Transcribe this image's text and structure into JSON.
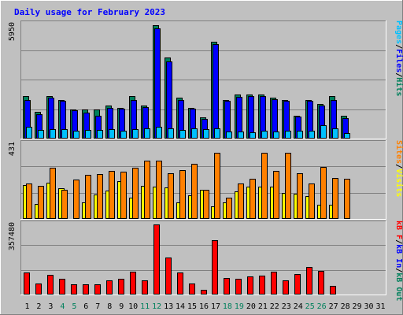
{
  "chart_data": {
    "type": "bar",
    "title": "Daily usage for February 2023",
    "categories": [
      "1",
      "2",
      "3",
      "4",
      "5",
      "6",
      "7",
      "8",
      "9",
      "10",
      "11",
      "12",
      "13",
      "14",
      "15",
      "16",
      "17",
      "18",
      "19",
      "20",
      "21",
      "22",
      "23",
      "24",
      "25",
      "26",
      "27",
      "28",
      "29",
      "30",
      "31"
    ],
    "weekend_days": [
      4,
      5,
      11,
      12,
      18,
      19,
      25,
      26
    ],
    "panels": [
      {
        "ymax": 5950,
        "ymax_label": "5950",
        "series": [
          {
            "name": "Hits",
            "color": "#00805c",
            "values": [
              2200,
              1400,
              2200,
              2000,
              1500,
              1500,
              1500,
              1700,
              1600,
              2200,
              1700,
              5850,
              4200,
              2100,
              1600,
              1100,
              5000,
              2000,
              2300,
              2300,
              2300,
              2100,
              2000,
              1200,
              2000,
              1800,
              2200,
              1200,
              0,
              0,
              0
            ]
          },
          {
            "name": "Files",
            "color": "#0000ff",
            "values": [
              2000,
              1250,
              2100,
              1950,
              1450,
              1350,
              1200,
              1600,
              1550,
              2000,
              1650,
              5700,
              4000,
              2000,
              1550,
              1000,
              4900,
              1950,
              2150,
              2200,
              2200,
              2050,
              1950,
              1150,
              1950,
              1700,
              2000,
              1050,
              0,
              0,
              0
            ]
          },
          {
            "name": "Pages",
            "color": "#00c0ff",
            "values": [
              600,
              450,
              500,
              500,
              400,
              450,
              450,
              480,
              420,
              480,
              550,
              620,
              550,
              450,
              550,
              500,
              550,
              380,
              380,
              320,
              420,
              380,
              400,
              420,
              400,
              700,
              550,
              280,
              0,
              0,
              0
            ]
          }
        ],
        "right_label": [
          {
            "text": "Pages",
            "color": "#00c0ff"
          },
          {
            "text": "/",
            "color": "#000000"
          },
          {
            "text": "Files",
            "color": "#0000ff"
          },
          {
            "text": "/",
            "color": "#000000"
          },
          {
            "text": "Hits",
            "color": "#00805c"
          }
        ]
      },
      {
        "ymax": 431,
        "ymax_label": "431",
        "series": [
          {
            "name": "Visits",
            "color": "#ffff00",
            "values": [
              195,
              85,
              205,
              175,
              0,
              95,
              140,
              160,
              215,
              120,
              190,
              185,
              180,
              95,
              135,
              165,
              70,
              95,
              155,
              185,
              185,
              185,
              150,
              145,
              130,
              80,
              80,
              0,
              0,
              0,
              0
            ]
          },
          {
            "name": "Sites",
            "color": "#ff8000",
            "values": [
              200,
              190,
              290,
              165,
              225,
              250,
              255,
              275,
              270,
              290,
              330,
              330,
              260,
              280,
              315,
              165,
              375,
              120,
              200,
              230,
              375,
              275,
              375,
              260,
              200,
              295,
              235,
              230,
              0,
              0,
              0
            ]
          }
        ],
        "right_label": [
          {
            "text": "Sites",
            "color": "#ff8000"
          },
          {
            "text": "/",
            "color": "#000000"
          },
          {
            "text": "Visits",
            "color": "#ffff00"
          }
        ]
      },
      {
        "ymax": 357480,
        "ymax_label": "357480",
        "series": [
          {
            "name": "kB F",
            "color": "#ff0000",
            "values": [
              110000,
              55000,
              100000,
              78000,
              50000,
              50000,
              52000,
              70000,
              78000,
              115000,
              70000,
              352000,
              185000,
              110000,
              55000,
              25000,
              275000,
              85000,
              80000,
              90000,
              95000,
              115000,
              70000,
              105000,
              140000,
              120000,
              45000,
              0,
              0,
              0,
              0
            ]
          }
        ],
        "right_label": [
          {
            "text": "kB F",
            "color": "#ff0000"
          },
          {
            "text": "/",
            "color": "#000000"
          },
          {
            "text": "kB In",
            "color": "#0000ff"
          },
          {
            "text": "/",
            "color": "#000000"
          },
          {
            "text": "kB Out",
            "color": "#00805c"
          }
        ]
      }
    ]
  }
}
